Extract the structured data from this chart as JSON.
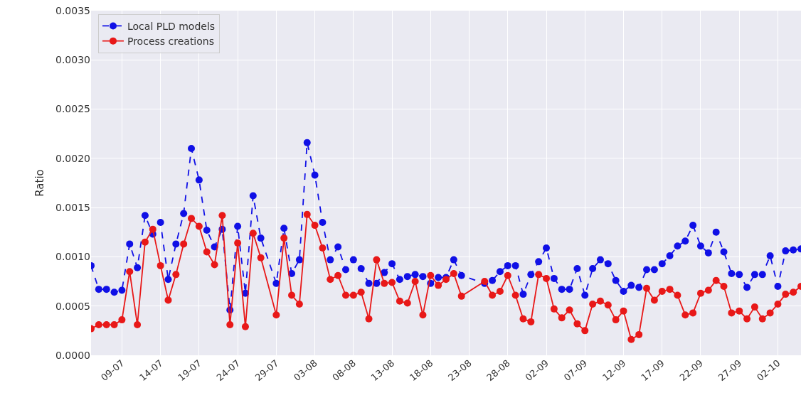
{
  "chart_data": {
    "type": "line",
    "ylabel": "Ratio",
    "x": [
      "--07-05",
      "--07-06",
      "--07-07",
      "--07-08",
      "--07-09",
      "--07-10",
      "--07-11",
      "--07-12",
      "--07-13",
      "--07-14",
      "--07-15",
      "--07-16",
      "--07-17",
      "--07-18",
      "--07-19",
      "--07-20",
      "--07-21",
      "--07-22",
      "--07-23",
      "--07-24",
      "--07-25",
      "--07-26",
      "--07-27",
      "--07-29",
      "--07-30",
      "--07-31",
      "--08-01",
      "--08-02",
      "--08-03",
      "--08-04",
      "--08-05",
      "--08-06",
      "--08-07",
      "--08-08",
      "--08-09",
      "--08-10",
      "--08-11",
      "--08-12",
      "--08-13",
      "--08-14",
      "--08-15",
      "--08-16",
      "--08-17",
      "--08-18",
      "--08-19",
      "--08-20",
      "--08-21",
      "--08-22",
      "--08-25",
      "--08-26",
      "--08-27",
      "--08-28",
      "--08-29",
      "--08-30",
      "--08-31",
      "--09-01",
      "--09-02",
      "--09-03",
      "--09-04",
      "--09-05",
      "--09-06",
      "--09-07",
      "--09-08",
      "--09-09",
      "--09-10",
      "--09-11",
      "--09-12",
      "--09-13",
      "--09-14",
      "--09-15",
      "--09-16",
      "--09-17",
      "--09-18",
      "--09-19",
      "--09-20",
      "--09-21",
      "--09-22",
      "--09-23",
      "--09-24",
      "--09-25",
      "--09-26",
      "--09-27",
      "--09-28",
      "--09-29",
      "--09-30",
      "--10-01",
      "--10-02",
      "--10-03",
      "--10-04",
      "--10-05"
    ],
    "series": [
      {
        "name": "Local PLD models",
        "color": "#1010e6",
        "line_style": "dashed",
        "values": [
          0.00091,
          0.00067,
          0.00067,
          0.00064,
          0.00066,
          0.00113,
          0.00089,
          0.00142,
          0.00123,
          0.00135,
          0.00077,
          0.00113,
          0.00144,
          0.0021,
          0.00178,
          0.00127,
          0.0011,
          0.00128,
          0.00046,
          0.00131,
          0.00063,
          0.00162,
          0.00119,
          0.00073,
          0.00129,
          0.00083,
          0.00097,
          0.00216,
          0.00183,
          0.00135,
          0.00097,
          0.0011,
          0.00087,
          0.00097,
          0.00088,
          0.00073,
          0.00073,
          0.00084,
          0.00093,
          0.00077,
          0.0008,
          0.00082,
          0.0008,
          0.00073,
          0.00079,
          0.00079,
          0.00097,
          0.00081,
          0.00073,
          0.00076,
          0.00085,
          0.00091,
          0.00091,
          0.00062,
          0.00082,
          0.00095,
          0.00109,
          0.00078,
          0.00067,
          0.00067,
          0.00088,
          0.00061,
          0.00088,
          0.00097,
          0.00093,
          0.00076,
          0.00065,
          0.00071,
          0.00069,
          0.00087,
          0.00087,
          0.00093,
          0.00101,
          0.00111,
          0.00116,
          0.00132,
          0.00111,
          0.00104,
          0.00125,
          0.00105,
          0.00083,
          0.00082,
          0.00069,
          0.00082,
          0.00082,
          0.00101,
          0.0007,
          0.00106,
          0.00107,
          0.00108
        ]
      },
      {
        "name": "Process creations",
        "color": "#e81818",
        "line_style": "solid",
        "values": [
          0.00027,
          0.00031,
          0.00031,
          0.00031,
          0.00036,
          0.00085,
          0.00031,
          0.00115,
          0.00128,
          0.00091,
          0.00056,
          0.00082,
          0.00113,
          0.00139,
          0.00131,
          0.00105,
          0.00092,
          0.00142,
          0.00031,
          0.00114,
          0.00029,
          0.00124,
          0.00099,
          0.00041,
          0.00119,
          0.00061,
          0.00052,
          0.00143,
          0.00132,
          0.00109,
          0.00077,
          0.00081,
          0.00061,
          0.00061,
          0.00064,
          0.00037,
          0.00097,
          0.00073,
          0.00074,
          0.00055,
          0.00053,
          0.00075,
          0.00041,
          0.00081,
          0.00071,
          0.00077,
          0.00083,
          0.0006,
          0.00075,
          0.00061,
          0.00065,
          0.00081,
          0.00061,
          0.00037,
          0.00034,
          0.00082,
          0.00078,
          0.00047,
          0.00038,
          0.00046,
          0.00032,
          0.00025,
          0.00052,
          0.00055,
          0.00051,
          0.00036,
          0.00045,
          0.00016,
          0.00021,
          0.00068,
          0.00056,
          0.00065,
          0.00067,
          0.00061,
          0.00041,
          0.00043,
          0.00063,
          0.00066,
          0.00076,
          0.0007,
          0.00043,
          0.00045,
          0.00037,
          0.00049,
          0.00037,
          0.00043,
          0.00052,
          0.00062,
          0.00064,
          0.0007
        ]
      }
    ],
    "xlim": [
      "--07-05",
      "--10-05"
    ],
    "xticks": [
      {
        "value": "--07-09",
        "label": "09-07"
      },
      {
        "value": "--07-14",
        "label": "14-07"
      },
      {
        "value": "--07-19",
        "label": "19-07"
      },
      {
        "value": "--07-24",
        "label": "24-07"
      },
      {
        "value": "--07-29",
        "label": "29-07"
      },
      {
        "value": "--08-03",
        "label": "03-08"
      },
      {
        "value": "--08-08",
        "label": "08-08"
      },
      {
        "value": "--08-13",
        "label": "13-08"
      },
      {
        "value": "--08-18",
        "label": "18-08"
      },
      {
        "value": "--08-23",
        "label": "23-08"
      },
      {
        "value": "--08-28",
        "label": "28-08"
      },
      {
        "value": "--09-02",
        "label": "02-09"
      },
      {
        "value": "--09-07",
        "label": "07-09"
      },
      {
        "value": "--09-12",
        "label": "12-09"
      },
      {
        "value": "--09-17",
        "label": "17-09"
      },
      {
        "value": "--09-22",
        "label": "22-09"
      },
      {
        "value": "--09-27",
        "label": "27-09"
      },
      {
        "value": "--10-02",
        "label": "02-10"
      }
    ],
    "ylim": [
      0,
      0.0035
    ],
    "yticks": [
      {
        "value": 0,
        "label": "0.0000"
      },
      {
        "value": 0.0005,
        "label": "0.0005"
      },
      {
        "value": 0.001,
        "label": "0.0010"
      },
      {
        "value": 0.0015,
        "label": "0.0015"
      },
      {
        "value": 0.002,
        "label": "0.0020"
      },
      {
        "value": 0.0025,
        "label": "0.0025"
      },
      {
        "value": 0.003,
        "label": "0.0030"
      },
      {
        "value": 0.0035,
        "label": "0.0035"
      }
    ],
    "grid": true,
    "legend": "top left",
    "marker": "circle"
  }
}
